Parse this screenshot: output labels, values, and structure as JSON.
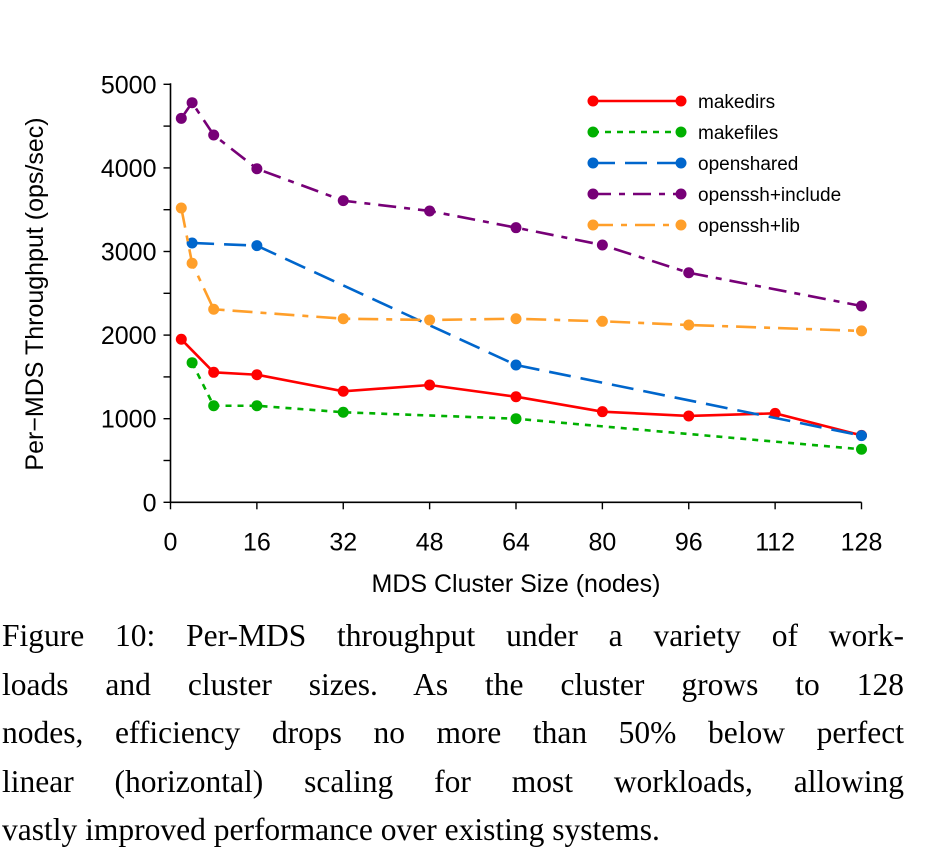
{
  "chart_data": {
    "type": "line",
    "xlabel": "MDS Cluster Size (nodes)",
    "ylabel": "Per−MDS Throughput (ops/sec)",
    "xlim": [
      0,
      128
    ],
    "ylim": [
      0,
      5000
    ],
    "xticks": [
      "0",
      "16",
      "32",
      "48",
      "64",
      "80",
      "96",
      "112",
      "128"
    ],
    "yticks": [
      "0",
      "1000",
      "2000",
      "3000",
      "4000",
      "5000"
    ],
    "grid": false,
    "legend_position": "top-right",
    "series": [
      {
        "name": "makedirs",
        "color": "#ff0000",
        "dash": "solid",
        "x": [
          2,
          8,
          16,
          32,
          48,
          64,
          80,
          96,
          112,
          128
        ],
        "y": [
          1950,
          1555,
          1526,
          1328,
          1403,
          1263,
          1084,
          1033,
          1064,
          800
        ]
      },
      {
        "name": "makefiles",
        "color": "#00b000",
        "dash": "short",
        "x": [
          4,
          8,
          16,
          32,
          64,
          128
        ],
        "y": [
          1670,
          1155,
          1155,
          1077,
          1000,
          634
        ]
      },
      {
        "name": "openshared",
        "color": "#0066cc",
        "dash": "long",
        "x": [
          4,
          16,
          64,
          128
        ],
        "y": [
          3102,
          3070,
          1642,
          798
        ]
      },
      {
        "name": "openssh+include",
        "color": "#770077",
        "dash": "dashdot",
        "x": [
          2,
          4,
          8,
          16,
          32,
          48,
          64,
          80,
          96,
          128
        ],
        "y": [
          4593,
          4780,
          4394,
          3990,
          3608,
          3485,
          3285,
          3078,
          2746,
          2348
        ]
      },
      {
        "name": "openssh+lib",
        "color": "#ff9f2a",
        "dash": "dashdot2",
        "x": [
          2,
          4,
          8,
          32,
          48,
          64,
          80,
          96,
          128
        ],
        "y": [
          3520,
          2859,
          2309,
          2196,
          2181,
          2196,
          2165,
          2121,
          2050
        ]
      }
    ]
  },
  "caption": {
    "lines": [
      "Figure 10: Per-MDS throughput under a variety of work-",
      "loads and cluster sizes.  As the cluster grows to 128",
      "nodes, efficiency drops no more than 50% below perfect",
      "linear (horizontal) scaling for most workloads, allowing",
      "vastly improved performance over existing systems."
    ]
  }
}
